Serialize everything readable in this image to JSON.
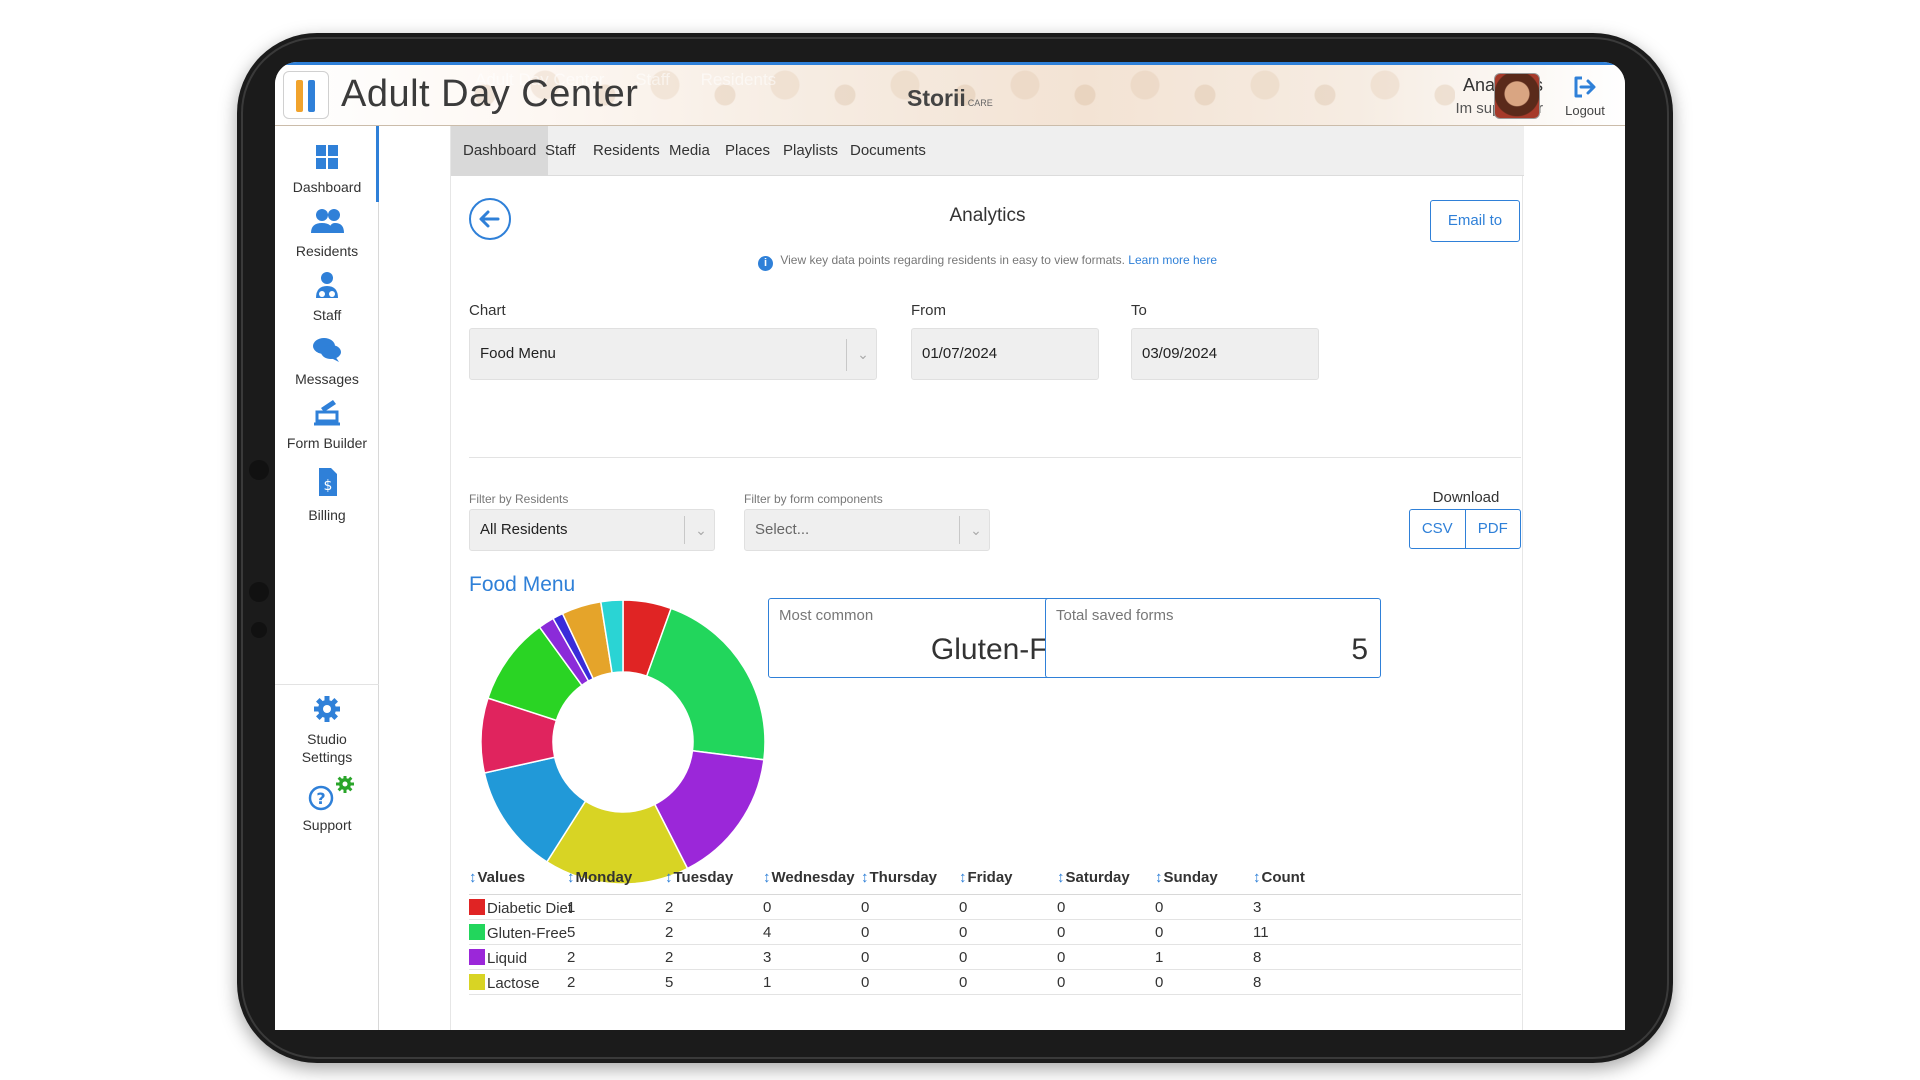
{
  "header": {
    "app_title": "Adult Day Center",
    "ghost_nav": [
      "Adult Day Center",
      "Staff",
      "Residents"
    ],
    "brand": "Storii",
    "brand_sub": "CARE",
    "user_name": "Ana Alves",
    "user_role": "Im superuser",
    "logout_label": "Logout"
  },
  "sidebar": {
    "items": [
      {
        "label": "Dashboard",
        "icon": "dashboard-icon"
      },
      {
        "label": "Residents",
        "icon": "residents-icon"
      },
      {
        "label": "Staff",
        "icon": "staff-icon"
      },
      {
        "label": "Messages",
        "icon": "messages-icon"
      },
      {
        "label": "Form Builder",
        "icon": "form-builder-icon"
      },
      {
        "label": "Billing",
        "icon": "billing-icon"
      }
    ],
    "bottom_items": [
      {
        "label_line1": "Studio",
        "label_line2": "Settings",
        "icon": "gear-icon"
      },
      {
        "label": "Support",
        "icon": "support-icon"
      }
    ]
  },
  "tabs": [
    "Dashboard",
    "Staff",
    "Residents",
    "Media",
    "Places",
    "Playlists",
    "Documents"
  ],
  "active_tab": "Dashboard",
  "page": {
    "title": "Analytics",
    "email_button": "Email to",
    "info_text": "View key data points regarding residents in easy to view formats.",
    "info_link": "Learn more here"
  },
  "form": {
    "chart_label": "Chart",
    "chart_value": "Food Menu",
    "from_label": "From",
    "from_value": "01/07/2024",
    "to_label": "To",
    "to_value": "03/09/2024",
    "filter_residents_label": "Filter by Residents",
    "filter_residents_value": "All Residents",
    "filter_components_label": "Filter by form components",
    "filter_components_placeholder": "Select...",
    "download_label": "Download",
    "csv_label": "CSV",
    "pdf_label": "PDF"
  },
  "summary": {
    "section_title": "Food Menu",
    "most_common_label": "Most common",
    "most_common_value": "Gluten-Free",
    "total_saved_label": "Total saved forms",
    "total_saved_value": "5"
  },
  "chart_data": {
    "type": "pie",
    "donut": true,
    "title": "Food Menu",
    "slices": [
      {
        "color": "#e02424",
        "value": 0.055
      },
      {
        "color": "#22d65c",
        "value": 0.215
      },
      {
        "color": "#9b27d9",
        "value": 0.155
      },
      {
        "color": "#d8d424",
        "value": 0.165
      },
      {
        "color": "#2199d8",
        "value": 0.125
      },
      {
        "color": "#e0245e",
        "value": 0.085
      },
      {
        "color": "#2ad424",
        "value": 0.1
      },
      {
        "color": "#8b2bd9",
        "value": 0.018
      },
      {
        "color": "#3a2bd9",
        "value": 0.012
      },
      {
        "color": "#e5a42a",
        "value": 0.045
      },
      {
        "color": "#2ad4d4",
        "value": 0.025
      }
    ]
  },
  "table": {
    "headers": [
      "Values",
      "Monday",
      "Tuesday",
      "Wednesday",
      "Thursday",
      "Friday",
      "Saturday",
      "Sunday",
      "Count"
    ],
    "rows": [
      {
        "label": "Diabetic Diet",
        "color": "#e02424",
        "cells": [
          "1",
          "2",
          "0",
          "0",
          "0",
          "0",
          "0",
          "3"
        ]
      },
      {
        "label": "Gluten-Free",
        "color": "#22d65c",
        "cells": [
          "5",
          "2",
          "4",
          "0",
          "0",
          "0",
          "0",
          "11"
        ]
      },
      {
        "label": "Liquid",
        "color": "#9b27d9",
        "cells": [
          "2",
          "2",
          "3",
          "0",
          "0",
          "0",
          "1",
          "8"
        ]
      },
      {
        "label": "Lactose",
        "color": "#d8d424",
        "cells": [
          "2",
          "5",
          "1",
          "0",
          "0",
          "0",
          "0",
          "8"
        ]
      }
    ]
  }
}
